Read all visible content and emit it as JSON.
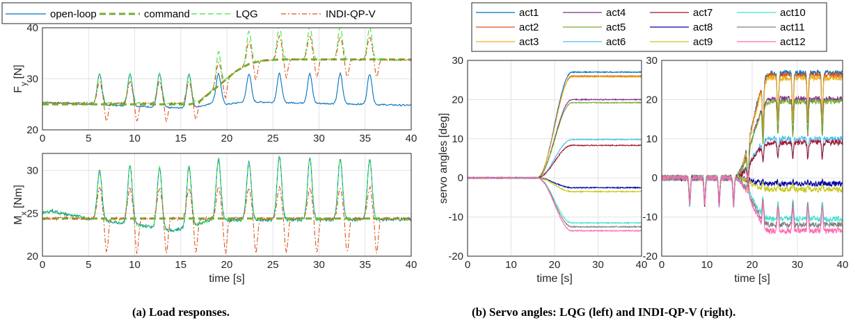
{
  "captions": {
    "a": "(a) Load responses.",
    "b": "(b) Servo angles: LQG (left) and INDI-QP-V (right)."
  },
  "colors": {
    "open_loop": "#0072bd",
    "command": "#77ac30",
    "lqg": "#39e639",
    "indi": "#d95319",
    "act1": "#0072bd",
    "act2": "#d95319",
    "act3": "#edb120",
    "act4": "#7e2f8e",
    "act5": "#77ac30",
    "act6": "#4dbeee",
    "act7": "#a2142f",
    "act8": "#0000a0",
    "act9": "#c8c820",
    "act10": "#40e0d0",
    "act11": "#808080",
    "act12": "#ff69b4"
  },
  "chart_data": [
    {
      "id": "fy",
      "type": "line",
      "ylabel": "F_y [N]",
      "xlabel": "",
      "xlim": [
        0,
        40
      ],
      "ylim": [
        20,
        40
      ],
      "xticks": [
        0,
        5,
        10,
        15,
        20,
        25,
        30,
        35,
        40
      ],
      "yticks": [
        20,
        30,
        40
      ],
      "grid": true,
      "legend": "top, horizontal",
      "pulse_times": [
        6.2,
        9.5,
        12.7,
        15.9,
        19.1,
        22.4,
        25.7,
        29.0,
        32.3,
        35.5
      ],
      "series": [
        {
          "name": "open-loop",
          "x": [
            0,
            5,
            16,
            18,
            19,
            20,
            22,
            40
          ],
          "y": [
            25.4,
            25.0,
            24.2,
            25.0,
            26.0,
            25.0,
            25.5,
            24.8
          ],
          "pulse_peak": 31.0
        },
        {
          "name": "command",
          "x": [
            0,
            16,
            17,
            19,
            21,
            22.5,
            24,
            26,
            40
          ],
          "y": [
            25,
            25,
            25.5,
            28.5,
            31.5,
            33,
            33.6,
            33.8,
            33.8
          ]
        },
        {
          "name": "LQG",
          "x": [
            0,
            16,
            17,
            19,
            21,
            22.5,
            24,
            26,
            40
          ],
          "y": [
            25.3,
            25.2,
            25.6,
            28.6,
            31.5,
            33,
            33.6,
            33.8,
            33.7
          ],
          "pulse_peak": 31.0,
          "pulse_gain": 0.65
        },
        {
          "name": "INDI-QP-V",
          "x": [
            0,
            16,
            17,
            19,
            21,
            22.5,
            24,
            26,
            40
          ],
          "y": [
            25.3,
            25.2,
            25.6,
            28.6,
            31.5,
            33,
            33.6,
            33.8,
            33.7
          ],
          "pulse_peak": 29.5,
          "dip": -3.5
        }
      ]
    },
    {
      "id": "mx",
      "type": "line",
      "ylabel": "M_x [Nm]",
      "xlabel": "time [s]",
      "xlim": [
        0,
        40
      ],
      "ylim": [
        20,
        32
      ],
      "xticks": [
        0,
        5,
        10,
        15,
        20,
        25,
        30,
        35,
        40
      ],
      "yticks": [
        20,
        25,
        30
      ],
      "grid": true,
      "pulse_times": [
        6.2,
        9.5,
        12.7,
        15.9,
        19.1,
        22.4,
        25.7,
        29.0,
        32.3,
        35.5
      ],
      "pulse_peaks": [
        30.0,
        30.6,
        30.4,
        30.5,
        31.4,
        31.0,
        31.8,
        31.4,
        31.4,
        31.3
      ],
      "series": [
        {
          "name": "open-loop",
          "x": [
            0,
            1,
            2,
            3,
            5,
            12,
            14,
            16,
            18,
            40
          ],
          "y": [
            25.0,
            25.3,
            25.0,
            24.8,
            24.4,
            23.4,
            23.0,
            23.4,
            24.2,
            24.3
          ]
        },
        {
          "name": "command",
          "x": [
            0,
            40
          ],
          "y": [
            24.4,
            24.4
          ]
        },
        {
          "name": "LQG",
          "x": [
            0,
            1,
            2,
            3,
            5,
            12,
            14,
            16,
            18,
            40
          ],
          "y": [
            25.0,
            25.3,
            25.0,
            24.8,
            24.4,
            23.4,
            23.0,
            23.4,
            24.2,
            24.3
          ]
        },
        {
          "name": "INDI-QP-V",
          "x": [
            0,
            40
          ],
          "y": [
            24.4,
            24.4
          ],
          "pulse_peak": 28.0,
          "dip": -4.0
        }
      ]
    },
    {
      "id": "lqg",
      "type": "line",
      "ylabel": "servo angles [deg]",
      "xlabel": "time [s]",
      "xlim": [
        0,
        40
      ],
      "ylim": [
        -20,
        30
      ],
      "xticks": [
        0,
        10,
        20,
        30,
        40
      ],
      "yticks": [
        -20,
        -10,
        0,
        10,
        20,
        30
      ],
      "grid": true,
      "legend": "top, 3 rows x 4 columns",
      "transition": [
        16,
        24
      ],
      "series": [
        {
          "name": "act1",
          "final": 27.0
        },
        {
          "name": "act2",
          "final": 26.0
        },
        {
          "name": "act3",
          "final": 25.8
        },
        {
          "name": "act4",
          "final": 20.0
        },
        {
          "name": "act5",
          "final": 19.2
        },
        {
          "name": "act6",
          "final": 9.8
        },
        {
          "name": "act7",
          "final": 8.3
        },
        {
          "name": "act8",
          "final": -2.5
        },
        {
          "name": "act9",
          "final": -3.5
        },
        {
          "name": "act10",
          "final": -11.5
        },
        {
          "name": "act11",
          "final": -12.5
        },
        {
          "name": "act12",
          "final": -13.5
        }
      ]
    },
    {
      "id": "indi",
      "type": "line",
      "ylabel": "",
      "xlabel": "time [s]",
      "xlim": [
        0,
        40
      ],
      "ylim": [
        -20,
        30
      ],
      "xticks": [
        0,
        10,
        20,
        30,
        40
      ],
      "yticks": [
        -20,
        -10,
        0,
        10,
        20,
        30
      ],
      "grid": true,
      "transition": [
        16,
        24
      ],
      "pulse_times": [
        6.2,
        9.5,
        12.7,
        15.9,
        19.1,
        22.4,
        25.7,
        29.0,
        32.3,
        35.5
      ],
      "series": [
        {
          "name": "act1",
          "final": 26.8
        },
        {
          "name": "act2",
          "final": 26.2
        },
        {
          "name": "act3",
          "final": 25.5
        },
        {
          "name": "act4",
          "final": 20.2
        },
        {
          "name": "act5",
          "final": 19.5
        },
        {
          "name": "act6",
          "final": 10.0
        },
        {
          "name": "act7",
          "final": 9.0
        },
        {
          "name": "act8",
          "final": -1.5
        },
        {
          "name": "act9",
          "final": -3.0
        },
        {
          "name": "act10",
          "final": -10.5
        },
        {
          "name": "act11",
          "final": -12.0
        },
        {
          "name": "act12",
          "final": -13.5
        }
      ]
    }
  ],
  "legend_a": [
    "open-loop",
    "command",
    "LQG",
    "INDI-QP-V"
  ],
  "legend_b": [
    "act1",
    "act4",
    "act7",
    "act10",
    "act2",
    "act5",
    "act8",
    "act11",
    "act3",
    "act6",
    "act9",
    "act12"
  ]
}
